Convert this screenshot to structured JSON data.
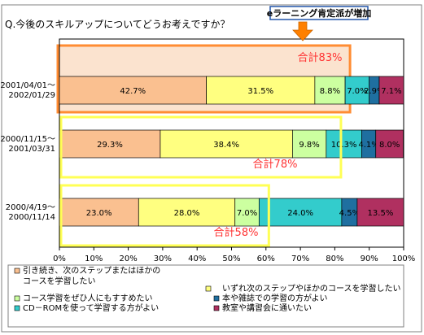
{
  "chart_data": {
    "type": "bar",
    "orientation": "horizontal",
    "stacked": true,
    "title": "Q.今後のスキルアップについてどうお考えですか？",
    "categories": [
      [
        "2001/04/01～",
        "2002/01/29"
      ],
      [
        "2000/11/15～",
        "2001/03/31"
      ],
      [
        "2000/4/19～",
        "2000/11/14"
      ]
    ],
    "series": [
      {
        "name": "引き続き、次のステップまたはほかのコースを学習したい",
        "color": "#fac090",
        "values": [
          42.7,
          29.3,
          23.0
        ],
        "labels": [
          "42.7%",
          "29.3%",
          "23.0%"
        ]
      },
      {
        "name": "いずれ次のステップやほかのコースを学習したい",
        "color": "#ffff80",
        "values": [
          31.5,
          38.4,
          28.0
        ],
        "labels": [
          "31.5%",
          "38.4%",
          "28.0%"
        ]
      },
      {
        "name": "コース学習をぜひ人にもすすめたい",
        "color": "#ccffa0",
        "values": [
          8.8,
          9.8,
          7.0
        ],
        "labels": [
          "8.8%",
          "9.8%",
          "7.0%"
        ]
      },
      {
        "name": "CD－ROMを使って学習する方がよい",
        "color": "#33cccc",
        "values": [
          7.0,
          10.3,
          24.0
        ],
        "labels": [
          "7.0%",
          "10.3%",
          "24.0%"
        ]
      },
      {
        "name": "本や雑誌での学習の方がよい",
        "color": "#1f6fa0",
        "values": [
          2.9,
          4.1,
          4.5
        ],
        "labels": [
          "2.9%",
          "4.1%",
          "4.5%"
        ]
      },
      {
        "name": "教室や講習会に通いたい",
        "color": "#b03060",
        "values": [
          7.1,
          8.0,
          13.5
        ],
        "labels": [
          "7.1%",
          "8.0%",
          "13.5%"
        ]
      }
    ],
    "xlim": [
      0,
      100
    ],
    "xticks": [
      "0%",
      "10%",
      "20%",
      "30%",
      "40%",
      "50%",
      "60%",
      "70%",
      "80%",
      "90%",
      "100%"
    ],
    "grid": false,
    "legend_position": "bottom",
    "legend_rows": [
      [
        "引き続き、次のステップまたはほかの",
        "コースを学習したい"
      ],
      [
        "いずれ次のステップやほかのコースを学習したい"
      ],
      [
        "コース学習をぜひ人にもすすめたい"
      ],
      [
        "本や雑誌での学習の方がよい"
      ],
      [
        "CD－ROMを使って学習する方がよい"
      ],
      [
        "教室や講習会に通いたい"
      ]
    ],
    "annotations": {
      "callout": "eラーニング肯定派が増加",
      "totals": [
        {
          "text": "合計83%",
          "row": 0,
          "value": 83,
          "fill": "#fbe3cf"
        },
        {
          "text": "合計78%",
          "row": 1,
          "value": 78,
          "fill": "none"
        },
        {
          "text": "合計58%",
          "row": 2,
          "value": 58,
          "fill": "none"
        }
      ]
    }
  }
}
